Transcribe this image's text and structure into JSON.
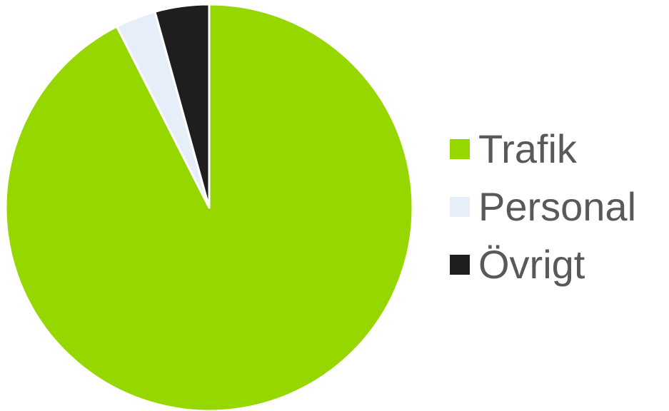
{
  "chart_data": {
    "type": "pie",
    "title": "",
    "categories": [
      "Trafik",
      "Personal",
      "Övrigt"
    ],
    "values": [
      92.5,
      3.2,
      4.3
    ],
    "colors": [
      "#96d700",
      "#e6eff9",
      "#1e1e1e"
    ],
    "legend_position": "right",
    "start_angle": "12 o'clock",
    "direction": "clockwise"
  }
}
